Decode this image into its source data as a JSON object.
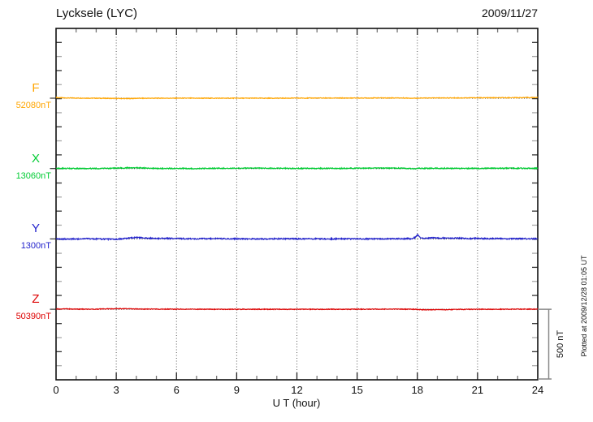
{
  "header": {
    "title": "Lycksele (LYC)",
    "date": "2009/11/27"
  },
  "plotted_note": "Plotted at 2009/12/28 01:05 UT",
  "chart_data": {
    "type": "line",
    "title": "Lycksele (LYC)",
    "date": "2009/11/27",
    "xlabel": "U T (hour)",
    "xlim": [
      0,
      24
    ],
    "x_major_ticks": [
      0,
      3,
      6,
      9,
      12,
      15,
      18,
      21,
      24
    ],
    "x_minor_step_hours": 1,
    "grid_vertical_hours": [
      3,
      6,
      9,
      12,
      15,
      18,
      21
    ],
    "y_minor_tick_nT": 100,
    "grid_style": "dotted",
    "legend_position": "left-of-plot",
    "scale_bar": {
      "label": "500 nT",
      "nT": 500
    },
    "series": [
      {
        "name": "F",
        "baseline_label": "52080nT",
        "baseline_nT": 52080,
        "color": "#FFA500",
        "noise_nT": 5,
        "deviation_points_nT": [
          [
            0,
            5
          ],
          [
            0.2,
            3
          ],
          [
            0.5,
            2
          ],
          [
            1,
            1
          ],
          [
            2,
            0
          ],
          [
            3,
            -2
          ],
          [
            3.6,
            -3
          ],
          [
            4,
            -1
          ],
          [
            5,
            0
          ],
          [
            7,
            0
          ],
          [
            9,
            0
          ],
          [
            11,
            0
          ],
          [
            13,
            1
          ],
          [
            15,
            1
          ],
          [
            16,
            2
          ],
          [
            17,
            2
          ],
          [
            17.9,
            0
          ],
          [
            18.3,
            1
          ],
          [
            19,
            2
          ],
          [
            20,
            2
          ],
          [
            21,
            3
          ],
          [
            22,
            3
          ],
          [
            23,
            4
          ],
          [
            24,
            5
          ]
        ]
      },
      {
        "name": "X",
        "baseline_label": "13060nT",
        "baseline_nT": 13060,
        "color": "#00CC33",
        "noise_nT": 7,
        "deviation_points_nT": [
          [
            0,
            2
          ],
          [
            1,
            0
          ],
          [
            2,
            0
          ],
          [
            3,
            2
          ],
          [
            3.5,
            5
          ],
          [
            4,
            6
          ],
          [
            4.5,
            3
          ],
          [
            5,
            1
          ],
          [
            6,
            1
          ],
          [
            7,
            0
          ],
          [
            8,
            2
          ],
          [
            9,
            2
          ],
          [
            10,
            3
          ],
          [
            11,
            2
          ],
          [
            12,
            1
          ],
          [
            13,
            1
          ],
          [
            14,
            1
          ],
          [
            15,
            2
          ],
          [
            16,
            3
          ],
          [
            17,
            3
          ],
          [
            17.9,
            -2
          ],
          [
            18.05,
            4
          ],
          [
            18.3,
            1
          ],
          [
            19,
            2
          ],
          [
            20,
            1
          ],
          [
            21,
            1
          ],
          [
            22,
            2
          ],
          [
            23,
            2
          ],
          [
            24,
            2
          ]
        ]
      },
      {
        "name": "Y",
        "baseline_label": "1300nT",
        "baseline_nT": 1300,
        "color": "#2222CC",
        "noise_nT": 9,
        "deviation_points_nT": [
          [
            0,
            0
          ],
          [
            0.5,
            -1
          ],
          [
            1,
            0
          ],
          [
            1.5,
            1
          ],
          [
            2,
            0
          ],
          [
            2.5,
            -2
          ],
          [
            3,
            -2
          ],
          [
            3.3,
            0
          ],
          [
            3.6,
            6
          ],
          [
            4,
            10
          ],
          [
            4.4,
            6
          ],
          [
            5,
            3
          ],
          [
            5.5,
            4
          ],
          [
            6,
            2
          ],
          [
            7,
            1
          ],
          [
            8,
            2
          ],
          [
            9,
            1
          ],
          [
            10,
            0
          ],
          [
            11,
            1
          ],
          [
            12,
            0
          ],
          [
            13,
            1
          ],
          [
            14,
            0
          ],
          [
            15,
            1
          ],
          [
            16,
            0
          ],
          [
            17,
            1
          ],
          [
            17.7,
            2
          ],
          [
            17.85,
            8
          ],
          [
            17.95,
            20
          ],
          [
            18.02,
            30
          ],
          [
            18.1,
            18
          ],
          [
            18.2,
            8
          ],
          [
            18.35,
            2
          ],
          [
            18.6,
            6
          ],
          [
            18.8,
            9
          ],
          [
            19,
            5
          ],
          [
            19.3,
            7
          ],
          [
            19.6,
            4
          ],
          [
            20,
            6
          ],
          [
            20.5,
            3
          ],
          [
            21,
            4
          ],
          [
            21.5,
            2
          ],
          [
            22,
            3
          ],
          [
            22.5,
            1
          ],
          [
            23,
            2
          ],
          [
            24,
            1
          ]
        ]
      },
      {
        "name": "Z",
        "baseline_label": "50390nT",
        "baseline_nT": 50390,
        "color": "#DD0000",
        "noise_nT": 5,
        "deviation_points_nT": [
          [
            0,
            2
          ],
          [
            0.5,
            3
          ],
          [
            1,
            1
          ],
          [
            2,
            1
          ],
          [
            2.5,
            3
          ],
          [
            3,
            4
          ],
          [
            3.5,
            4
          ],
          [
            4,
            2
          ],
          [
            5,
            1
          ],
          [
            6,
            1
          ],
          [
            8,
            0
          ],
          [
            10,
            0
          ],
          [
            12,
            0
          ],
          [
            14,
            0
          ],
          [
            16,
            1
          ],
          [
            17,
            1
          ],
          [
            17.9,
            0
          ],
          [
            18.2,
            -3
          ],
          [
            18.6,
            -4
          ],
          [
            19,
            -2
          ],
          [
            19.5,
            -3
          ],
          [
            20,
            -1
          ],
          [
            21,
            0
          ],
          [
            22,
            0
          ],
          [
            23,
            1
          ],
          [
            24,
            1
          ]
        ]
      }
    ]
  }
}
